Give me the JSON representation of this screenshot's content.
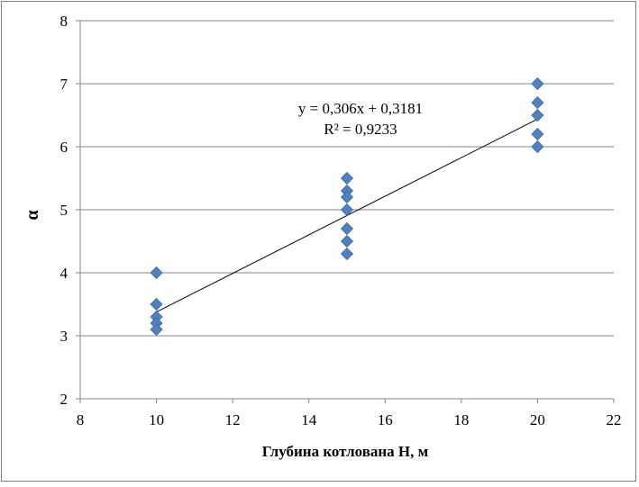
{
  "chart_data": {
    "type": "scatter",
    "xlabel": "Глубина котлована H, м",
    "ylabel": "α",
    "xlim": [
      8,
      22
    ],
    "ylim": [
      2,
      8
    ],
    "x_ticks": [
      "8",
      "10",
      "12",
      "14",
      "16",
      "18",
      "20",
      "22"
    ],
    "y_ticks": [
      "2",
      "3",
      "4",
      "5",
      "6",
      "7",
      "8"
    ],
    "grid": "horizontal",
    "marker": "diamond",
    "marker_color": "#4f81bd",
    "points": [
      {
        "x": 10,
        "y": 4.0
      },
      {
        "x": 10,
        "y": 3.5
      },
      {
        "x": 10,
        "y": 3.3
      },
      {
        "x": 10,
        "y": 3.2
      },
      {
        "x": 10,
        "y": 3.1
      },
      {
        "x": 15,
        "y": 5.5
      },
      {
        "x": 15,
        "y": 5.3
      },
      {
        "x": 15,
        "y": 5.2
      },
      {
        "x": 15,
        "y": 5.0
      },
      {
        "x": 15,
        "y": 4.7
      },
      {
        "x": 15,
        "y": 4.5
      },
      {
        "x": 15,
        "y": 4.3
      },
      {
        "x": 20,
        "y": 7.0
      },
      {
        "x": 20,
        "y": 6.7
      },
      {
        "x": 20,
        "y": 6.5
      },
      {
        "x": 20,
        "y": 6.2
      },
      {
        "x": 20,
        "y": 6.0
      }
    ],
    "trendline": {
      "type": "linear",
      "slope": 0.306,
      "intercept": 0.3181,
      "x_range": [
        10,
        20
      ],
      "equation_label": "y = 0,306x + 0,3181",
      "r2_label": "R² = 0,9233"
    }
  }
}
